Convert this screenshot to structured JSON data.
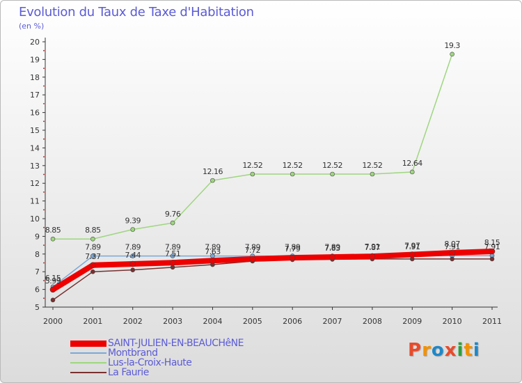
{
  "title": "Evolution du Taux de Taxe d'Habitation",
  "unit": "(en %)",
  "logo": {
    "text": "Proxiti",
    "colors": [
      "#e84b2a",
      "#f39200",
      "#1e88c8",
      "#e84b2a",
      "#2e9e3e",
      "#f39200",
      "#1e88c8"
    ]
  },
  "chart_data": {
    "type": "line",
    "x": [
      2000,
      2001,
      2002,
      2003,
      2004,
      2005,
      2006,
      2007,
      2008,
      2009,
      2010,
      2011
    ],
    "ylim": [
      5,
      20
    ],
    "yticks": [
      5,
      6,
      7,
      8,
      9,
      10,
      11,
      12,
      13,
      14,
      15,
      16,
      17,
      18,
      19,
      20
    ],
    "grid": false,
    "legend_position": "bottom-left",
    "series": [
      {
        "name": "Montbrand",
        "color": "#7ba7d6",
        "width": 1.5,
        "values": [
          6.15,
          7.89,
          7.89,
          7.89,
          7.89,
          7.89,
          7.89,
          7.89,
          7.91,
          7.91,
          7.91,
          7.91
        ],
        "labels": [
          "6.15",
          "7.89",
          "7.89",
          "7.89",
          "7.89",
          "7.89",
          "7.89",
          "7.89",
          "7.91",
          "7.91",
          "7.91",
          "7.91"
        ]
      },
      {
        "name": "Lus-la-Croix-Haute",
        "color": "#9ed67e",
        "width": 1.5,
        "values": [
          8.85,
          8.85,
          9.39,
          9.76,
          12.16,
          12.52,
          12.52,
          12.52,
          12.52,
          12.64,
          19.3,
          null
        ],
        "labels": [
          "8.85",
          "8.85",
          "9.39",
          "9.76",
          "12.16",
          "12.52",
          "12.52",
          "12.52",
          "12.52",
          "12.64",
          "19.3",
          ""
        ]
      },
      {
        "name": "La Faurie",
        "color": "#7a3030",
        "width": 1.5,
        "values": [
          5.4,
          7.0,
          7.1,
          7.25,
          7.4,
          7.6,
          7.68,
          7.7,
          7.72,
          7.72,
          7.72,
          7.72
        ],
        "labels": [
          "",
          "",
          "",
          "",
          "",
          "",
          "",
          "",
          "",
          "",
          "",
          ""
        ]
      },
      {
        "name": "SAINT-JULIEN-EN-BEAUCHêNE",
        "color": "#ee0000",
        "width": 8,
        "values": [
          5.99,
          7.37,
          7.44,
          7.51,
          7.63,
          7.72,
          7.79,
          7.83,
          7.87,
          7.97,
          8.07,
          8.15
        ],
        "labels": [
          "5.99",
          "7.37",
          "7.44",
          "7.51",
          "7.63",
          "7.72",
          "7.79",
          "7.83",
          "7.87",
          "7.97",
          "8.07",
          "8.15"
        ]
      }
    ]
  },
  "legend": [
    {
      "label": "SAINT-JULIEN-EN-BEAUCHêNE",
      "color": "#ee0000",
      "thickness": 9
    },
    {
      "label": "Montbrand",
      "color": "#7ba7d6",
      "thickness": 2
    },
    {
      "label": "Lus-la-Croix-Haute",
      "color": "#9ed67e",
      "thickness": 2
    },
    {
      "label": "La Faurie",
      "color": "#7a3030",
      "thickness": 2
    }
  ]
}
